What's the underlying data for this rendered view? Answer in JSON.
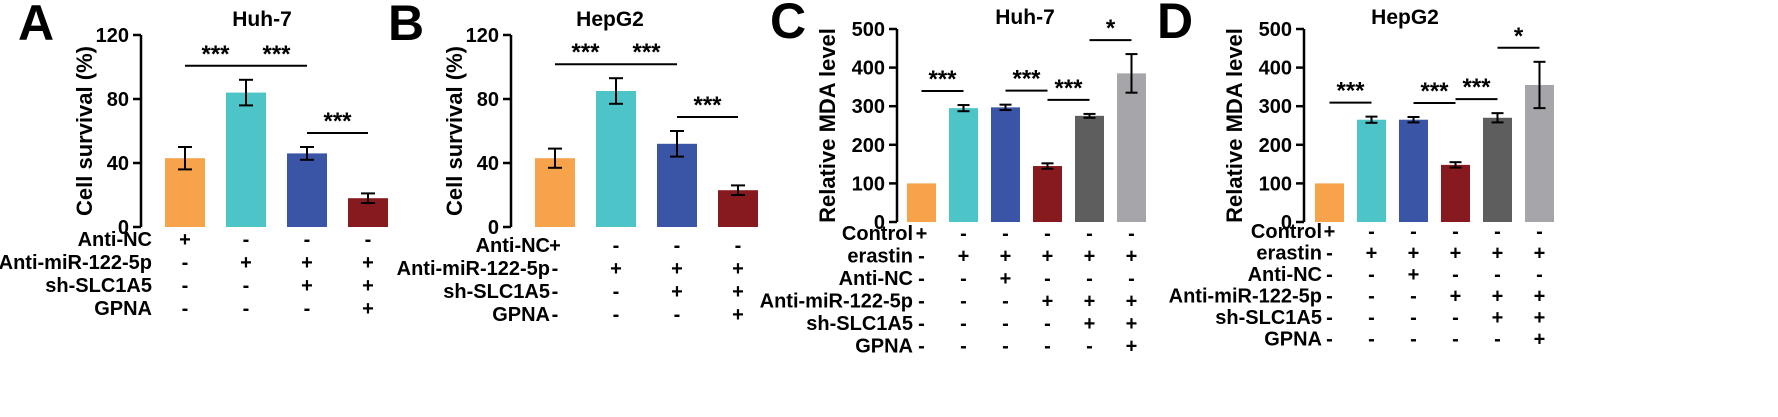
{
  "chart_data": [
    {
      "panel": "A",
      "type": "bar",
      "title": "Huh-7",
      "ylabel": "Cell survival (%)",
      "ylim": [
        0,
        120
      ],
      "yticks": [
        "0",
        "40",
        "80",
        "120"
      ],
      "values": [
        43,
        84,
        46,
        18
      ],
      "errors": [
        7,
        8,
        4,
        3
      ],
      "colors": [
        "#F7A34C",
        "#4CC4C8",
        "#3A55A6",
        "#871A1F"
      ],
      "significance": [
        {
          "from": 0,
          "to": 1,
          "label": "***"
        },
        {
          "from": 1,
          "to": 2,
          "label": "***"
        },
        {
          "from": 2,
          "to": 3,
          "label": "***"
        }
      ],
      "rows": [
        {
          "label": "Anti-NC",
          "signs": [
            "+",
            "-",
            "-",
            "-"
          ]
        },
        {
          "label": "Anti-miR-122-5p",
          "signs": [
            "-",
            "+",
            "+",
            "+"
          ]
        },
        {
          "label": "sh-SLC1A5",
          "signs": [
            "-",
            "-",
            "+",
            "+"
          ]
        },
        {
          "label": "GPNA",
          "signs": [
            "-",
            "-",
            "-",
            "+"
          ]
        }
      ]
    },
    {
      "panel": "B",
      "type": "bar",
      "title": "HepG2",
      "ylabel": "Cell survival (%)",
      "ylim": [
        0,
        120
      ],
      "yticks": [
        "0",
        "40",
        "80",
        "120"
      ],
      "values": [
        43,
        85,
        52,
        23
      ],
      "errors": [
        6,
        8,
        8,
        3
      ],
      "colors": [
        "#F7A34C",
        "#4CC4C8",
        "#3A55A6",
        "#871A1F"
      ],
      "significance": [
        {
          "from": 0,
          "to": 1,
          "label": "***"
        },
        {
          "from": 1,
          "to": 2,
          "label": "***"
        },
        {
          "from": 2,
          "to": 3,
          "label": "***"
        }
      ],
      "rows": [
        {
          "label": "Anti-NC",
          "signs": [
            "+",
            "-",
            "-",
            "-"
          ]
        },
        {
          "label": "Anti-miR-122-5p",
          "signs": [
            "-",
            "+",
            "+",
            "+"
          ]
        },
        {
          "label": "sh-SLC1A5",
          "signs": [
            "-",
            "-",
            "+",
            "+"
          ]
        },
        {
          "label": "GPNA",
          "signs": [
            "-",
            "-",
            "-",
            "+"
          ]
        }
      ]
    },
    {
      "panel": "C",
      "type": "bar",
      "title": "Huh-7",
      "ylabel": "Relative MDA level",
      "ylim": [
        0,
        500
      ],
      "yticks": [
        "0",
        "100",
        "200",
        "300",
        "400",
        "500"
      ],
      "values": [
        100,
        295,
        297,
        145,
        275,
        385
      ],
      "errors": [
        0,
        8,
        7,
        7,
        5,
        50
      ],
      "colors": [
        "#F7A34C",
        "#4CC4C8",
        "#3A55A6",
        "#871A1F",
        "#5E5E5E",
        "#A6A6AA"
      ],
      "significance": [
        {
          "from": 0,
          "to": 1,
          "label": "***"
        },
        {
          "from": 2,
          "to": 3,
          "label": "***"
        },
        {
          "from": 3,
          "to": 4,
          "label": "***"
        },
        {
          "from": 4,
          "to": 5,
          "label": "*"
        }
      ],
      "rows": [
        {
          "label": "Control",
          "signs": [
            "+",
            "-",
            "-",
            "-",
            "-",
            "-"
          ]
        },
        {
          "label": "erastin",
          "signs": [
            "-",
            "+",
            "+",
            "+",
            "+",
            "+"
          ]
        },
        {
          "label": "Anti-NC",
          "signs": [
            "-",
            "-",
            "+",
            "-",
            "-",
            "-"
          ]
        },
        {
          "label": "Anti-miR-122-5p",
          "signs": [
            "-",
            "-",
            "-",
            "+",
            "+",
            "+"
          ]
        },
        {
          "label": "sh-SLC1A5",
          "signs": [
            "-",
            "-",
            "-",
            "-",
            "+",
            "+"
          ]
        },
        {
          "label": "GPNA",
          "signs": [
            "-",
            "-",
            "-",
            "-",
            "-",
            "+"
          ]
        }
      ]
    },
    {
      "panel": "D",
      "type": "bar",
      "title": "HepG2",
      "ylabel": "Relative MDA level",
      "ylim": [
        0,
        500
      ],
      "yticks": [
        "0",
        "100",
        "200",
        "300",
        "400",
        "500"
      ],
      "values": [
        100,
        265,
        265,
        148,
        270,
        355
      ],
      "errors": [
        0,
        8,
        7,
        7,
        12,
        60
      ],
      "colors": [
        "#F7A34C",
        "#4CC4C8",
        "#3A55A6",
        "#871A1F",
        "#5E5E5E",
        "#A6A6AA"
      ],
      "significance": [
        {
          "from": 0,
          "to": 1,
          "label": "***"
        },
        {
          "from": 2,
          "to": 3,
          "label": "***"
        },
        {
          "from": 3,
          "to": 4,
          "label": "***"
        },
        {
          "from": 4,
          "to": 5,
          "label": "*"
        }
      ],
      "rows": [
        {
          "label": "Control",
          "signs": [
            "+",
            "-",
            "-",
            "-",
            "-",
            "-"
          ]
        },
        {
          "label": "erastin",
          "signs": [
            "-",
            "+",
            "+",
            "+",
            "+",
            "+"
          ]
        },
        {
          "label": "Anti-NC",
          "signs": [
            "-",
            "-",
            "+",
            "-",
            "-",
            "-"
          ]
        },
        {
          "label": "Anti-miR-122-5p",
          "signs": [
            "-",
            "-",
            "-",
            "+",
            "+",
            "+"
          ]
        },
        {
          "label": "sh-SLC1A5",
          "signs": [
            "-",
            "-",
            "-",
            "-",
            "+",
            "+"
          ]
        },
        {
          "label": "GPNA",
          "signs": [
            "-",
            "-",
            "-",
            "-",
            "-",
            "+"
          ]
        }
      ]
    }
  ]
}
